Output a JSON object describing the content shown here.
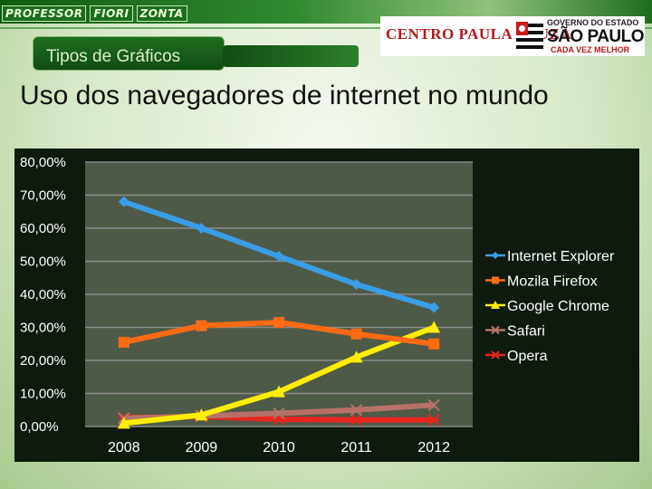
{
  "header": {
    "brand_words": [
      "PROFESSOR",
      "FIORI",
      "ZONTA"
    ],
    "section_label": "Tipos de Gráficos",
    "logo_cps": "CENTRO PAULA SOUZA",
    "logo_gov_line1": "GOVERNO DO ESTADO",
    "logo_gov_line2": "SÃO PAULO",
    "logo_gov_line3": "CADA VEZ MELHOR"
  },
  "page": {
    "title": "Uso dos navegadores de internet no mundo"
  },
  "chart_data": {
    "type": "line",
    "title": "",
    "xlabel": "",
    "ylabel": "",
    "categories": [
      "2008",
      "2009",
      "2010",
      "2011",
      "2012"
    ],
    "ylim": [
      0,
      80
    ],
    "y_ticks": [
      "0,00%",
      "10,00%",
      "20,00%",
      "30,00%",
      "40,00%",
      "50,00%",
      "60,00%",
      "70,00%",
      "80,00%"
    ],
    "y_tick_values": [
      0,
      10,
      20,
      30,
      40,
      50,
      60,
      70,
      80
    ],
    "grid": true,
    "legend_position": "right",
    "series": [
      {
        "name": "Internet Explorer",
        "values": [
          68,
          60,
          51.5,
          43,
          36
        ],
        "color": "#3a9ee6",
        "marker": "diamond"
      },
      {
        "name": "Mozila Firefox",
        "values": [
          25.5,
          30.5,
          31.5,
          28,
          25
        ],
        "color": "#ff6a13",
        "marker": "square"
      },
      {
        "name": "Google Chrome",
        "values": [
          1,
          3.5,
          10.5,
          21,
          30
        ],
        "color": "#ffee00",
        "marker": "triangle"
      },
      {
        "name": "Safari",
        "values": [
          2.5,
          3.2,
          4,
          5,
          6.5
        ],
        "color": "#b6726a",
        "marker": "x"
      },
      {
        "name": "Opera",
        "values": [
          2.7,
          3,
          2.2,
          2,
          2
        ],
        "color": "#e8251c",
        "marker": "star"
      }
    ]
  }
}
